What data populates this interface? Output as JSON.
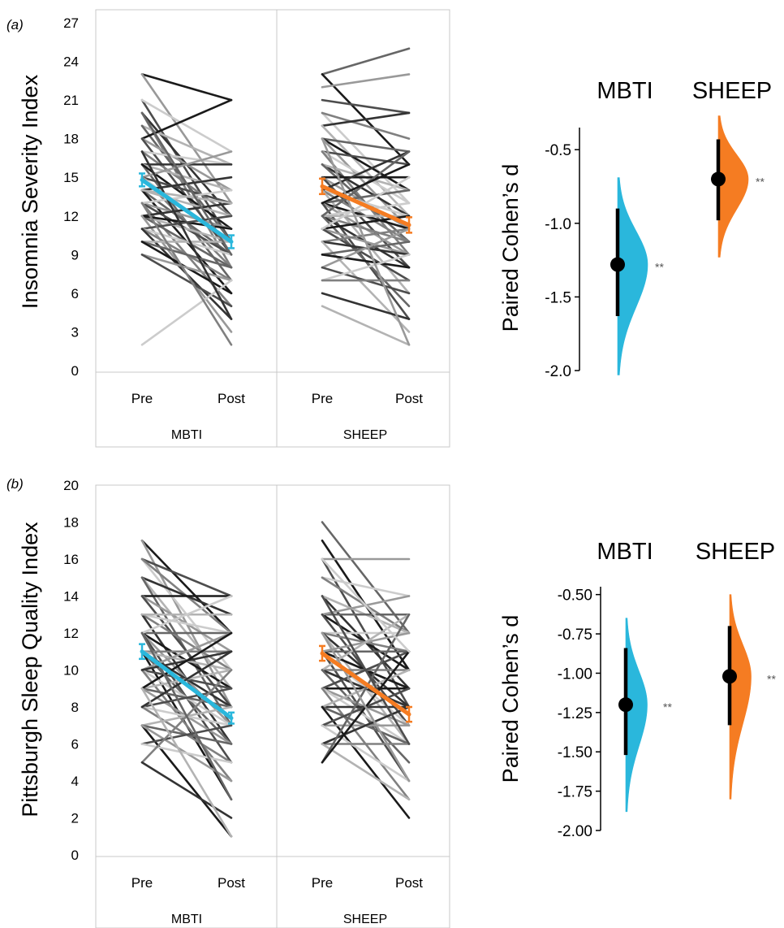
{
  "colors": {
    "mbti": "#2ab7dc",
    "sheep": "#f57c22",
    "frame": "#c9c9c9",
    "grays": [
      "#1a1a1a",
      "#333333",
      "#4d4d4d",
      "#666666",
      "#808080",
      "#999999",
      "#b3b3b3",
      "#cccccc"
    ]
  },
  "chart_data": [
    {
      "panel": "(a)",
      "type": "line",
      "ylabel": "Insomnia Severity Index",
      "ylim": [
        0,
        27
      ],
      "yticks": [
        0,
        3,
        6,
        9,
        12,
        15,
        18,
        21,
        24,
        27
      ],
      "time_labels": [
        "Pre",
        "Post"
      ],
      "groups": [
        {
          "name": "MBTI",
          "mean": [
            14.8,
            10.0
          ],
          "err": [
            0.5,
            0.5
          ],
          "pairs": [
            [
              23,
              21
            ],
            [
              23,
              13
            ],
            [
              21,
              10
            ],
            [
              21,
              17
            ],
            [
              20,
              8
            ],
            [
              20,
              12
            ],
            [
              19,
              16
            ],
            [
              19,
              10
            ],
            [
              18,
              21
            ],
            [
              18,
              14
            ],
            [
              18,
              9
            ],
            [
              17,
              16
            ],
            [
              17,
              12
            ],
            [
              16,
              16
            ],
            [
              16,
              14
            ],
            [
              16,
              7
            ],
            [
              16,
              11
            ],
            [
              15,
              17
            ],
            [
              15,
              13
            ],
            [
              15,
              10
            ],
            [
              15,
              8
            ],
            [
              14,
              15
            ],
            [
              14,
              12
            ],
            [
              14,
              9
            ],
            [
              14,
              6
            ],
            [
              13,
              11
            ],
            [
              13,
              9
            ],
            [
              13,
              14
            ],
            [
              13,
              5
            ],
            [
              12,
              13
            ],
            [
              12,
              10
            ],
            [
              12,
              8
            ],
            [
              12,
              11
            ],
            [
              12,
              3
            ],
            [
              11,
              12
            ],
            [
              11,
              9
            ],
            [
              11,
              7
            ],
            [
              11,
              4
            ],
            [
              10,
              10
            ],
            [
              10,
              8
            ],
            [
              10,
              6
            ],
            [
              9,
              7
            ],
            [
              9,
              5
            ],
            [
              2,
              7
            ],
            [
              13,
              2
            ],
            [
              17,
              4
            ],
            [
              14,
              13
            ],
            [
              20,
              9
            ]
          ]
        },
        {
          "name": "SHEEP",
          "mean": [
            14.3,
            11.3
          ],
          "err": [
            0.6,
            0.6
          ],
          "pairs": [
            [
              23,
              25
            ],
            [
              23,
              16
            ],
            [
              22,
              23
            ],
            [
              21,
              20
            ],
            [
              20,
              13
            ],
            [
              20,
              18
            ],
            [
              19,
              20
            ],
            [
              19,
              12
            ],
            [
              18,
              17
            ],
            [
              18,
              14
            ],
            [
              18,
              11
            ],
            [
              17,
              16
            ],
            [
              17,
              13
            ],
            [
              17,
              9
            ],
            [
              16,
              12
            ],
            [
              16,
              14
            ],
            [
              16,
              10
            ],
            [
              15,
              15
            ],
            [
              15,
              11
            ],
            [
              15,
              8
            ],
            [
              14,
              12
            ],
            [
              14,
              10
            ],
            [
              14,
              17
            ],
            [
              14,
              6
            ],
            [
              13,
              14
            ],
            [
              13,
              11
            ],
            [
              13,
              9
            ],
            [
              13,
              4
            ],
            [
              12,
              13
            ],
            [
              12,
              10
            ],
            [
              12,
              8
            ],
            [
              12,
              12
            ],
            [
              12,
              5
            ],
            [
              11,
              12
            ],
            [
              11,
              9
            ],
            [
              11,
              7
            ],
            [
              11,
              15
            ],
            [
              10,
              11
            ],
            [
              10,
              9
            ],
            [
              10,
              3
            ],
            [
              9,
              10
            ],
            [
              9,
              8
            ],
            [
              8,
              11
            ],
            [
              8,
              6
            ],
            [
              7,
              9
            ],
            [
              7,
              7
            ],
            [
              6,
              4
            ],
            [
              5,
              2
            ],
            [
              12,
              17
            ],
            [
              13,
              16
            ],
            [
              18,
              2
            ]
          ]
        }
      ],
      "effect": {
        "ylabel": "Paired Cohen’s d",
        "ylim": [
          -2.0,
          -0.35
        ],
        "yticks": [
          -0.5,
          -1.0,
          -1.5,
          -2.0
        ],
        "ytick_labels": [
          "-0.5",
          "-1.0",
          "-1.5",
          "-2.0"
        ],
        "groups": [
          {
            "name": "MBTI",
            "d": -1.28,
            "ci": [
              -1.63,
              -0.9
            ],
            "dist": [
              -2.03,
              -0.69
            ],
            "sig": "**"
          },
          {
            "name": "SHEEP",
            "d": -0.7,
            "ci": [
              -0.98,
              -0.43
            ],
            "dist": [
              -1.23,
              -0.27
            ],
            "sig": "**"
          }
        ]
      }
    },
    {
      "panel": "(b)",
      "type": "line",
      "ylabel": "Pittsburgh Sleep Quality Index",
      "ylim": [
        0,
        20
      ],
      "yticks": [
        0,
        2,
        4,
        6,
        8,
        10,
        12,
        14,
        16,
        18,
        20
      ],
      "time_labels": [
        "Pre",
        "Post"
      ],
      "groups": [
        {
          "name": "MBTI",
          "mean": [
            11.0,
            7.4
          ],
          "err": [
            0.4,
            0.3
          ],
          "pairs": [
            [
              17,
              12
            ],
            [
              17,
              8
            ],
            [
              16,
              14
            ],
            [
              16,
              10
            ],
            [
              16,
              12
            ],
            [
              15,
              13
            ],
            [
              15,
              9
            ],
            [
              15,
              7
            ],
            [
              14,
              14
            ],
            [
              14,
              11
            ],
            [
              14,
              8
            ],
            [
              13,
              12
            ],
            [
              13,
              10
            ],
            [
              13,
              6
            ],
            [
              13,
              13
            ],
            [
              12,
              12
            ],
            [
              12,
              9
            ],
            [
              12,
              7
            ],
            [
              12,
              5
            ],
            [
              12,
              14
            ],
            [
              11,
              11
            ],
            [
              11,
              8
            ],
            [
              11,
              10
            ],
            [
              11,
              6
            ],
            [
              11,
              3
            ],
            [
              10,
              12
            ],
            [
              10,
              9
            ],
            [
              10,
              7
            ],
            [
              10,
              4
            ],
            [
              10,
              11
            ],
            [
              9,
              10
            ],
            [
              9,
              8
            ],
            [
              9,
              12
            ],
            [
              9,
              6
            ],
            [
              8,
              9
            ],
            [
              8,
              7
            ],
            [
              8,
              5
            ],
            [
              8,
              11
            ],
            [
              7,
              8
            ],
            [
              7,
              6
            ],
            [
              7,
              1
            ],
            [
              7,
              4
            ],
            [
              6,
              7
            ],
            [
              6,
              5
            ],
            [
              5,
              10
            ],
            [
              5,
              2
            ],
            [
              9,
              1
            ],
            [
              12,
              3
            ]
          ]
        },
        {
          "name": "SHEEP",
          "mean": [
            10.9,
            7.6
          ],
          "err": [
            0.4,
            0.4
          ],
          "pairs": [
            [
              18,
              12
            ],
            [
              17,
              10
            ],
            [
              16,
              16
            ],
            [
              16,
              8
            ],
            [
              15,
              14
            ],
            [
              15,
              12
            ],
            [
              14,
              9
            ],
            [
              14,
              12
            ],
            [
              13,
              13
            ],
            [
              13,
              10
            ],
            [
              13,
              14
            ],
            [
              13,
              7
            ],
            [
              12,
              12
            ],
            [
              12,
              11
            ],
            [
              12,
              8
            ],
            [
              12,
              6
            ],
            [
              11,
              11
            ],
            [
              11,
              9
            ],
            [
              11,
              12
            ],
            [
              11,
              4
            ],
            [
              11,
              7
            ],
            [
              10,
              10
            ],
            [
              10,
              8
            ],
            [
              10,
              13
            ],
            [
              10,
              5
            ],
            [
              9,
              9
            ],
            [
              9,
              7
            ],
            [
              9,
              11
            ],
            [
              9,
              6
            ],
            [
              9,
              3
            ],
            [
              8,
              8
            ],
            [
              8,
              10
            ],
            [
              8,
              6
            ],
            [
              8,
              2
            ],
            [
              7,
              7
            ],
            [
              7,
              9
            ],
            [
              7,
              4
            ],
            [
              6,
              6
            ],
            [
              6,
              8
            ],
            [
              6,
              3
            ],
            [
              5,
              13
            ],
            [
              5,
              11
            ],
            [
              12,
              4
            ],
            [
              14,
              6
            ],
            [
              16,
              11
            ]
          ]
        }
      ],
      "effect": {
        "ylabel": "Paired Cohen’s d",
        "ylim": [
          -2.0,
          -0.45
        ],
        "yticks": [
          -0.5,
          -0.75,
          -1.0,
          -1.25,
          -1.5,
          -1.75,
          -2.0
        ],
        "ytick_labels": [
          "-0.50",
          "-0.75",
          "-1.00",
          "-1.25",
          "-1.50",
          "-1.75",
          "-2.00"
        ],
        "groups": [
          {
            "name": "MBTI",
            "d": -1.2,
            "ci": [
              -1.52,
              -0.84
            ],
            "dist": [
              -1.88,
              -0.65
            ],
            "sig": "**"
          },
          {
            "name": "SHEEP",
            "d": -1.02,
            "ci": [
              -1.33,
              -0.7
            ],
            "dist": [
              -1.8,
              -0.5
            ],
            "sig": "**"
          }
        ]
      }
    }
  ]
}
